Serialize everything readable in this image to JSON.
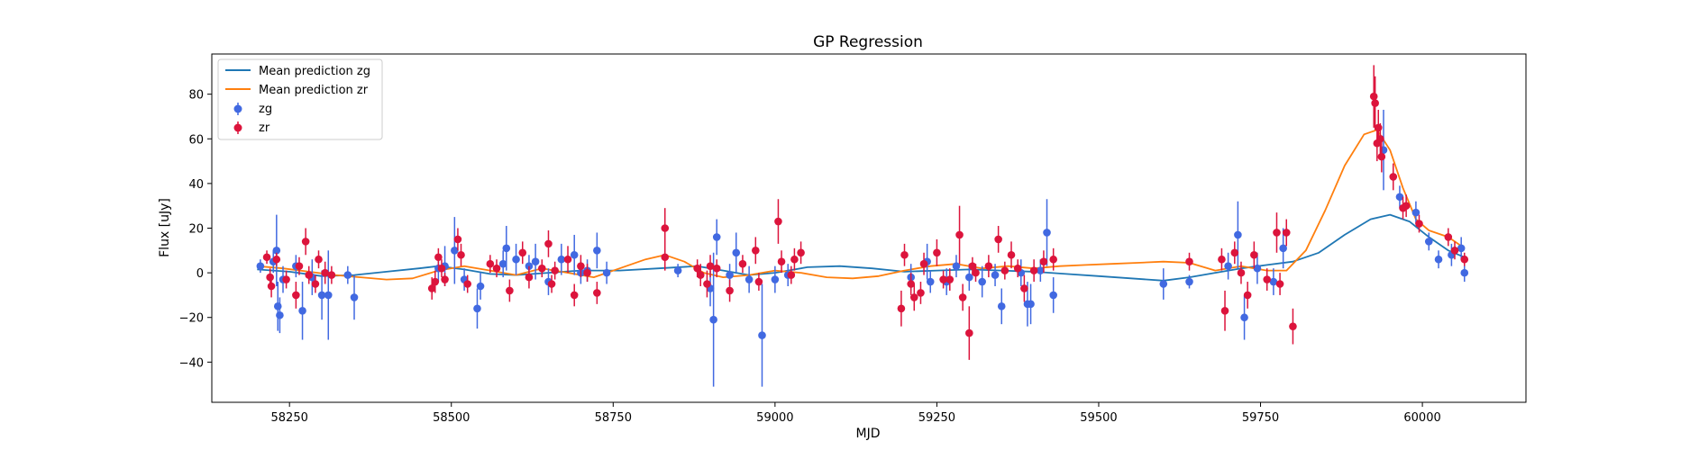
{
  "chart_data": {
    "type": "scatter",
    "title": "GP Regression",
    "xlabel": "MJD",
    "ylabel": "Flux [uJy]",
    "xlim": [
      58130,
      60160
    ],
    "ylim": [
      -58,
      98
    ],
    "xticks": [
      58250,
      58500,
      58750,
      59000,
      59250,
      59500,
      59750,
      60000
    ],
    "yticks": [
      -40,
      -20,
      0,
      20,
      40,
      60,
      80
    ],
    "grid": false,
    "legend_position": "top-left",
    "legend": [
      "Mean prediction zg",
      "Mean prediction zr",
      "zg",
      "zr"
    ],
    "series": [
      {
        "name": "Mean prediction zg",
        "kind": "line",
        "color": "#1f77b4",
        "points": [
          [
            58200,
            1.5
          ],
          [
            58250,
            0.5
          ],
          [
            58300,
            -1.5
          ],
          [
            58350,
            -1
          ],
          [
            58400,
            0.5
          ],
          [
            58450,
            2
          ],
          [
            58480,
            3
          ],
          [
            58520,
            1.5
          ],
          [
            58560,
            -0.5
          ],
          [
            58600,
            -1
          ],
          [
            58650,
            0
          ],
          [
            58700,
            1
          ],
          [
            58760,
            1
          ],
          [
            58820,
            2
          ],
          [
            58880,
            3
          ],
          [
            58920,
            1
          ],
          [
            58960,
            -1
          ],
          [
            59000,
            0
          ],
          [
            59050,
            2.5
          ],
          [
            59100,
            3
          ],
          [
            59150,
            2
          ],
          [
            59200,
            0.5
          ],
          [
            59250,
            1
          ],
          [
            59300,
            1.5
          ],
          [
            59350,
            1
          ],
          [
            59400,
            0.5
          ],
          [
            59450,
            -0.5
          ],
          [
            59500,
            -1.5
          ],
          [
            59550,
            -2.5
          ],
          [
            59600,
            -3.5
          ],
          [
            59640,
            -2
          ],
          [
            59680,
            0
          ],
          [
            59720,
            2
          ],
          [
            59760,
            3.5
          ],
          [
            59800,
            5
          ],
          [
            59840,
            9
          ],
          [
            59880,
            17
          ],
          [
            59920,
            24
          ],
          [
            59950,
            26
          ],
          [
            59980,
            23
          ],
          [
            60010,
            16
          ],
          [
            60040,
            10
          ],
          [
            60065,
            7
          ]
        ]
      },
      {
        "name": "Mean prediction zr",
        "kind": "line",
        "color": "#ff7f0e",
        "points": [
          [
            58200,
            3
          ],
          [
            58240,
            2
          ],
          [
            58280,
            0.5
          ],
          [
            58320,
            -1
          ],
          [
            58360,
            -2
          ],
          [
            58400,
            -3
          ],
          [
            58440,
            -2.5
          ],
          [
            58480,
            1
          ],
          [
            58520,
            3
          ],
          [
            58560,
            1
          ],
          [
            58600,
            -1
          ],
          [
            58640,
            2
          ],
          [
            58680,
            0
          ],
          [
            58720,
            -2
          ],
          [
            58760,
            2
          ],
          [
            58800,
            6
          ],
          [
            58830,
            8
          ],
          [
            58860,
            5
          ],
          [
            58890,
            0
          ],
          [
            58920,
            -2
          ],
          [
            58960,
            -1
          ],
          [
            59000,
            1
          ],
          [
            59040,
            0
          ],
          [
            59080,
            -2
          ],
          [
            59120,
            -2.5
          ],
          [
            59160,
            -1.5
          ],
          [
            59200,
            1
          ],
          [
            59240,
            3
          ],
          [
            59280,
            4
          ],
          [
            59320,
            2
          ],
          [
            59360,
            3
          ],
          [
            59400,
            2
          ],
          [
            59440,
            3
          ],
          [
            59480,
            3.5
          ],
          [
            59520,
            4
          ],
          [
            59560,
            4.5
          ],
          [
            59600,
            5
          ],
          [
            59640,
            4.5
          ],
          [
            59680,
            1
          ],
          [
            59720,
            3
          ],
          [
            59760,
            1
          ],
          [
            59790,
            1
          ],
          [
            59820,
            10
          ],
          [
            59850,
            28
          ],
          [
            59880,
            48
          ],
          [
            59910,
            62
          ],
          [
            59930,
            64
          ],
          [
            59950,
            55
          ],
          [
            59970,
            38
          ],
          [
            59990,
            24
          ],
          [
            60010,
            19
          ],
          [
            60040,
            16
          ],
          [
            60065,
            11
          ]
        ]
      },
      {
        "name": "zg",
        "kind": "errorbar",
        "color": "#4169e1",
        "points": [
          [
            58205,
            3,
            3
          ],
          [
            58225,
            5,
            5
          ],
          [
            58230,
            10,
            16
          ],
          [
            58232,
            -15,
            11
          ],
          [
            58235,
            -19,
            8
          ],
          [
            58240,
            -3,
            6
          ],
          [
            58260,
            3,
            5
          ],
          [
            58270,
            -17,
            13
          ],
          [
            58285,
            -2,
            8
          ],
          [
            58300,
            -10,
            11
          ],
          [
            58310,
            -10,
            20
          ],
          [
            58350,
            -11,
            10
          ],
          [
            58340,
            -1,
            4
          ],
          [
            58480,
            2,
            6
          ],
          [
            58490,
            3,
            9
          ],
          [
            58505,
            10,
            15
          ],
          [
            58520,
            -3,
            5
          ],
          [
            58540,
            -16,
            9
          ],
          [
            58545,
            -6,
            6
          ],
          [
            58580,
            4,
            6
          ],
          [
            58585,
            11,
            10
          ],
          [
            58600,
            6,
            7
          ],
          [
            58620,
            3,
            5
          ],
          [
            58630,
            5,
            8
          ],
          [
            58650,
            -4,
            6
          ],
          [
            58670,
            6,
            7
          ],
          [
            58690,
            8,
            9
          ],
          [
            58700,
            0,
            5
          ],
          [
            58710,
            1,
            5
          ],
          [
            58725,
            10,
            8
          ],
          [
            58740,
            0,
            5
          ],
          [
            58850,
            1,
            3
          ],
          [
            58900,
            -7,
            8
          ],
          [
            58905,
            -21,
            30
          ],
          [
            58910,
            16,
            8
          ],
          [
            58930,
            -1,
            5
          ],
          [
            58940,
            9,
            9
          ],
          [
            58960,
            -3,
            6
          ],
          [
            58980,
            -28,
            23
          ],
          [
            59000,
            -3,
            6
          ],
          [
            59020,
            -1,
            5
          ],
          [
            59210,
            -2,
            6
          ],
          [
            59235,
            5,
            8
          ],
          [
            59240,
            -4,
            5
          ],
          [
            59265,
            -4,
            6
          ],
          [
            59280,
            3,
            5
          ],
          [
            59300,
            -2,
            6
          ],
          [
            59320,
            -4,
            7
          ],
          [
            59340,
            -1,
            5
          ],
          [
            59350,
            -15,
            8
          ],
          [
            59380,
            0,
            6
          ],
          [
            59390,
            -14,
            10
          ],
          [
            59395,
            -14,
            9
          ],
          [
            59410,
            1,
            5
          ],
          [
            59420,
            18,
            15
          ],
          [
            59430,
            -10,
            8
          ],
          [
            59600,
            -5,
            7
          ],
          [
            59640,
            -4,
            3
          ],
          [
            59700,
            3,
            6
          ],
          [
            59715,
            17,
            15
          ],
          [
            59725,
            -20,
            10
          ],
          [
            59745,
            2,
            7
          ],
          [
            59770,
            -4,
            6
          ],
          [
            59785,
            11,
            9
          ],
          [
            59940,
            55,
            18
          ],
          [
            59965,
            34,
            5
          ],
          [
            59990,
            27,
            5
          ],
          [
            60010,
            14,
            4
          ],
          [
            60025,
            6,
            4
          ],
          [
            60045,
            8,
            5
          ],
          [
            60060,
            11,
            5
          ],
          [
            60065,
            0,
            4
          ]
        ]
      },
      {
        "name": "zr",
        "kind": "errorbar",
        "color": "#dc143c",
        "points": [
          [
            58215,
            7,
            3
          ],
          [
            58220,
            -2,
            4
          ],
          [
            58222,
            -6,
            5
          ],
          [
            58230,
            6,
            3
          ],
          [
            58245,
            -3,
            4
          ],
          [
            58260,
            -10,
            6
          ],
          [
            58265,
            3,
            4
          ],
          [
            58275,
            14,
            6
          ],
          [
            58280,
            -1,
            4
          ],
          [
            58290,
            -5,
            4
          ],
          [
            58295,
            6,
            4
          ],
          [
            58305,
            0,
            5
          ],
          [
            58315,
            -1,
            4
          ],
          [
            58470,
            -7,
            5
          ],
          [
            58475,
            -4,
            5
          ],
          [
            58480,
            7,
            4
          ],
          [
            58485,
            2,
            4
          ],
          [
            58490,
            -3,
            3
          ],
          [
            58510,
            15,
            5
          ],
          [
            58515,
            8,
            5
          ],
          [
            58525,
            -5,
            4
          ],
          [
            58560,
            4,
            4
          ],
          [
            58570,
            2,
            4
          ],
          [
            58590,
            -8,
            5
          ],
          [
            58610,
            9,
            5
          ],
          [
            58620,
            -2,
            5
          ],
          [
            58640,
            2,
            4
          ],
          [
            58650,
            13,
            6
          ],
          [
            58655,
            -5,
            4
          ],
          [
            58660,
            1,
            4
          ],
          [
            58680,
            6,
            6
          ],
          [
            58690,
            -10,
            5
          ],
          [
            58700,
            3,
            5
          ],
          [
            58710,
            0,
            4
          ],
          [
            58725,
            -9,
            5
          ],
          [
            58830,
            20,
            9
          ],
          [
            58830,
            7,
            6
          ],
          [
            58880,
            2,
            4
          ],
          [
            58885,
            -1,
            5
          ],
          [
            58895,
            -5,
            6
          ],
          [
            58900,
            3,
            5
          ],
          [
            58910,
            2,
            4
          ],
          [
            58930,
            -8,
            5
          ],
          [
            58950,
            4,
            4
          ],
          [
            58970,
            10,
            6
          ],
          [
            58975,
            -4,
            4
          ],
          [
            59005,
            23,
            10
          ],
          [
            59010,
            5,
            5
          ],
          [
            59025,
            -1,
            4
          ],
          [
            59030,
            6,
            5
          ],
          [
            59040,
            9,
            5
          ],
          [
            59195,
            -16,
            8
          ],
          [
            59200,
            8,
            5
          ],
          [
            59210,
            -5,
            5
          ],
          [
            59215,
            -11,
            6
          ],
          [
            59225,
            -9,
            5
          ],
          [
            59230,
            4,
            5
          ],
          [
            59250,
            9,
            6
          ],
          [
            59260,
            -3,
            4
          ],
          [
            59270,
            -3,
            5
          ],
          [
            59285,
            17,
            13
          ],
          [
            59290,
            -11,
            6
          ],
          [
            59300,
            -27,
            12
          ],
          [
            59305,
            3,
            4
          ],
          [
            59310,
            0,
            4
          ],
          [
            59330,
            3,
            5
          ],
          [
            59345,
            15,
            6
          ],
          [
            59355,
            1,
            4
          ],
          [
            59365,
            8,
            6
          ],
          [
            59375,
            2,
            4
          ],
          [
            59385,
            -7,
            6
          ],
          [
            59400,
            1,
            5
          ],
          [
            59415,
            5,
            5
          ],
          [
            59430,
            6,
            5
          ],
          [
            59640,
            5,
            4
          ],
          [
            59690,
            6,
            5
          ],
          [
            59695,
            -17,
            9
          ],
          [
            59710,
            9,
            5
          ],
          [
            59720,
            0,
            5
          ],
          [
            59730,
            -10,
            6
          ],
          [
            59740,
            8,
            6
          ],
          [
            59760,
            -3,
            5
          ],
          [
            59775,
            18,
            9
          ],
          [
            59780,
            -5,
            5
          ],
          [
            59790,
            18,
            6
          ],
          [
            59800,
            -24,
            8
          ],
          [
            59925,
            79,
            14
          ],
          [
            59927,
            76,
            12
          ],
          [
            59930,
            58,
            8
          ],
          [
            59932,
            65,
            8
          ],
          [
            59935,
            60,
            7
          ],
          [
            59937,
            52,
            7
          ],
          [
            59955,
            43,
            6
          ],
          [
            59970,
            29,
            5
          ],
          [
            59975,
            30,
            5
          ],
          [
            59995,
            22,
            4
          ],
          [
            60040,
            16,
            4
          ],
          [
            60050,
            10,
            4
          ],
          [
            60065,
            6,
            3
          ]
        ]
      }
    ]
  }
}
